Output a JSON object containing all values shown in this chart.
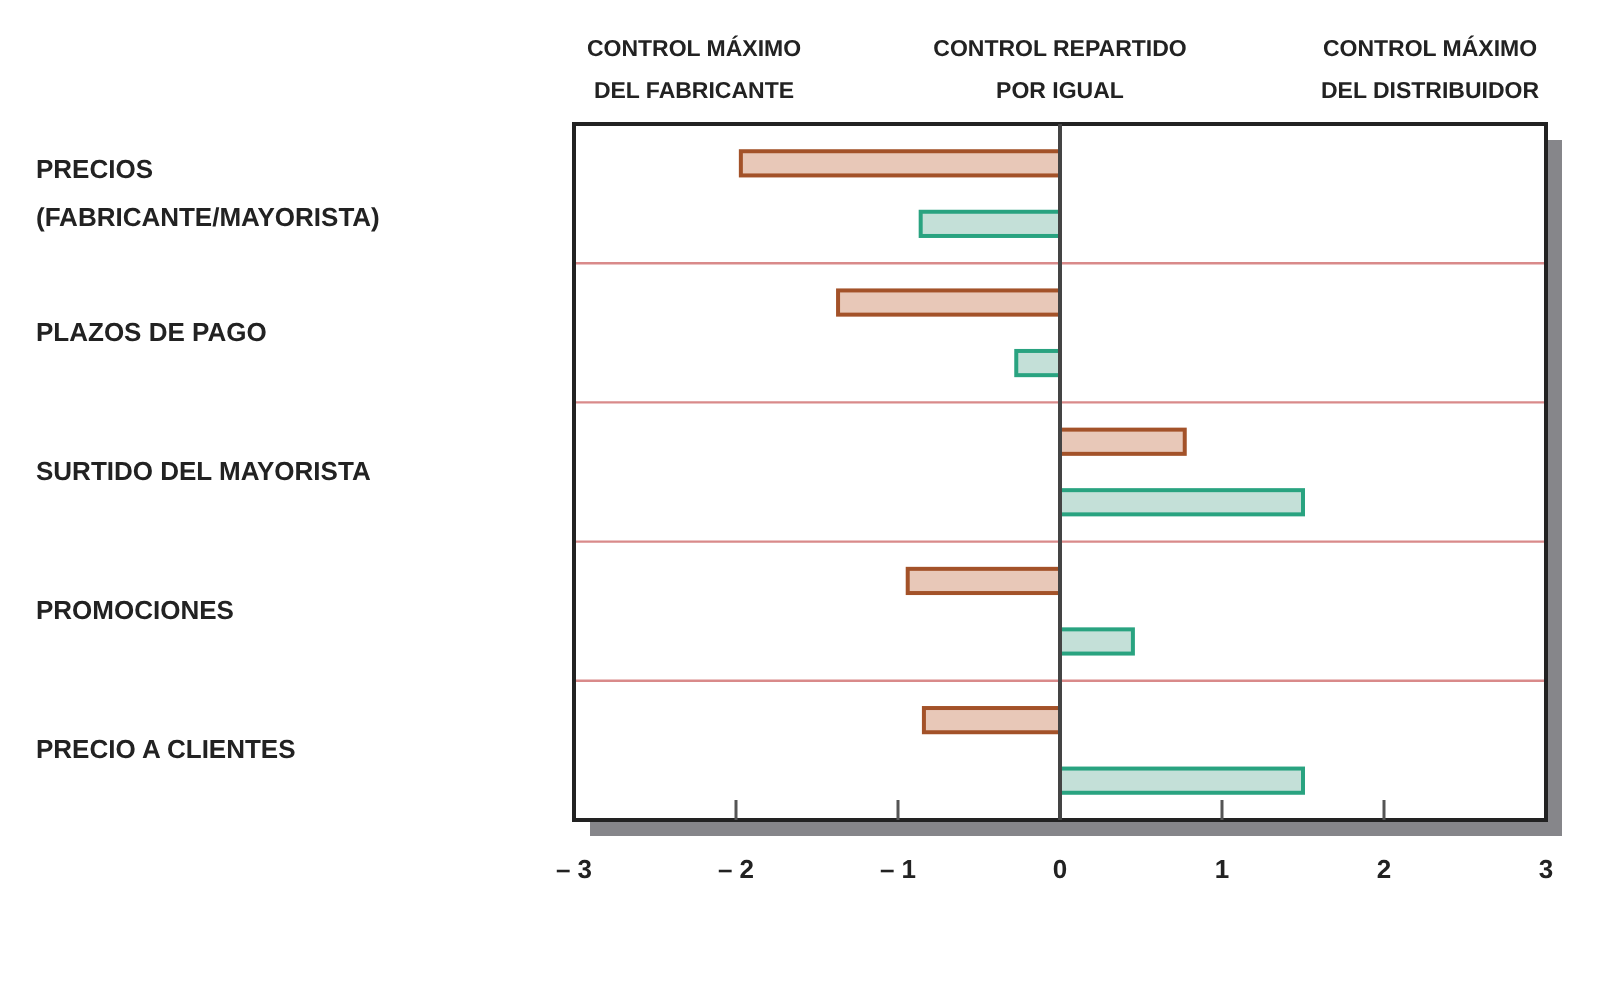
{
  "chart_data": {
    "type": "bar",
    "orientation": "horizontal",
    "categories": [
      "PRECIOS (FABRICANTE/MAYORISTA)",
      "PLAZOS DE PAGO",
      "SURTIDO DEL MAYORISTA",
      "PROMOCIONES",
      "PRECIO A CLIENTES"
    ],
    "series": [
      {
        "color": "#e8c8b8",
        "values": [
          -1.97,
          -1.37,
          0.77,
          -0.94,
          -0.84
        ]
      },
      {
        "color": "#c4e0d8",
        "values": [
          -0.86,
          -0.27,
          1.5,
          0.45,
          1.5
        ]
      }
    ],
    "xlim": [
      -3,
      3
    ],
    "xticks": [
      {
        "value": -3,
        "label": "– 3"
      },
      {
        "value": -2,
        "label": "– 2"
      },
      {
        "value": -1,
        "label": "– 1"
      },
      0,
      1,
      2,
      3
    ],
    "grid": "y",
    "annotations": [
      "CONTROL MÁXIMO\nDEL FABRICANTE",
      "CONTROL REPARTIDO\nPOR IGUAL",
      "CONTROL MÁXIMO\nDEL DISTRIBUIDOR"
    ]
  }
}
